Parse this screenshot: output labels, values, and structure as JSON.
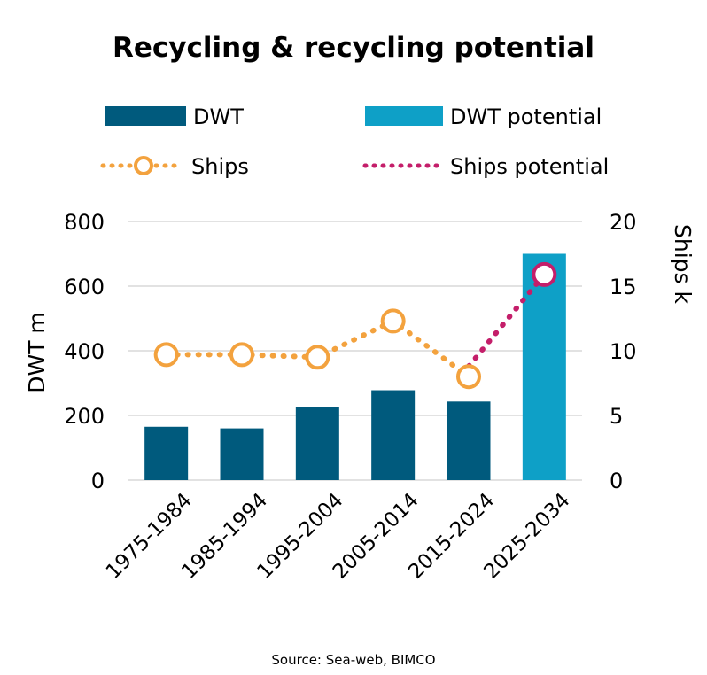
{
  "chart_data": {
    "type": "bar",
    "title": "Recycling & recycling potential",
    "source": "Source: Sea-web, BIMCO",
    "categories": [
      "1975-1984",
      "1985-1994",
      "1995-2004",
      "2005-2014",
      "2015-2024",
      "2025-2034"
    ],
    "y_left": {
      "label": "DWT m",
      "range": [
        0,
        800
      ],
      "ticks": [
        0,
        200,
        400,
        600,
        800
      ]
    },
    "y_right": {
      "label": "Ships k",
      "range": [
        0,
        20
      ],
      "ticks": [
        0,
        5,
        10,
        15,
        20
      ]
    },
    "grid": true,
    "legend_position": "top",
    "series": [
      {
        "name": "DWT",
        "kind": "bar",
        "axis": "left",
        "color": "#005a7d",
        "values": [
          165,
          160,
          225,
          278,
          243,
          null
        ]
      },
      {
        "name": "DWT potential",
        "kind": "bar",
        "axis": "left",
        "color": "#0ea0c7",
        "values": [
          null,
          null,
          null,
          null,
          null,
          700
        ]
      },
      {
        "name": "Ships",
        "kind": "line",
        "style": "dotted-circle-markers",
        "axis": "right",
        "color": "#f3a23e",
        "values": [
          9.7,
          9.7,
          9.5,
          12.3,
          8.0,
          null
        ]
      },
      {
        "name": "Ships potential",
        "kind": "line",
        "style": "dotted",
        "axis": "right",
        "color": "#c41e6a",
        "values": [
          null,
          null,
          null,
          null,
          8.8,
          15.9
        ]
      }
    ]
  }
}
